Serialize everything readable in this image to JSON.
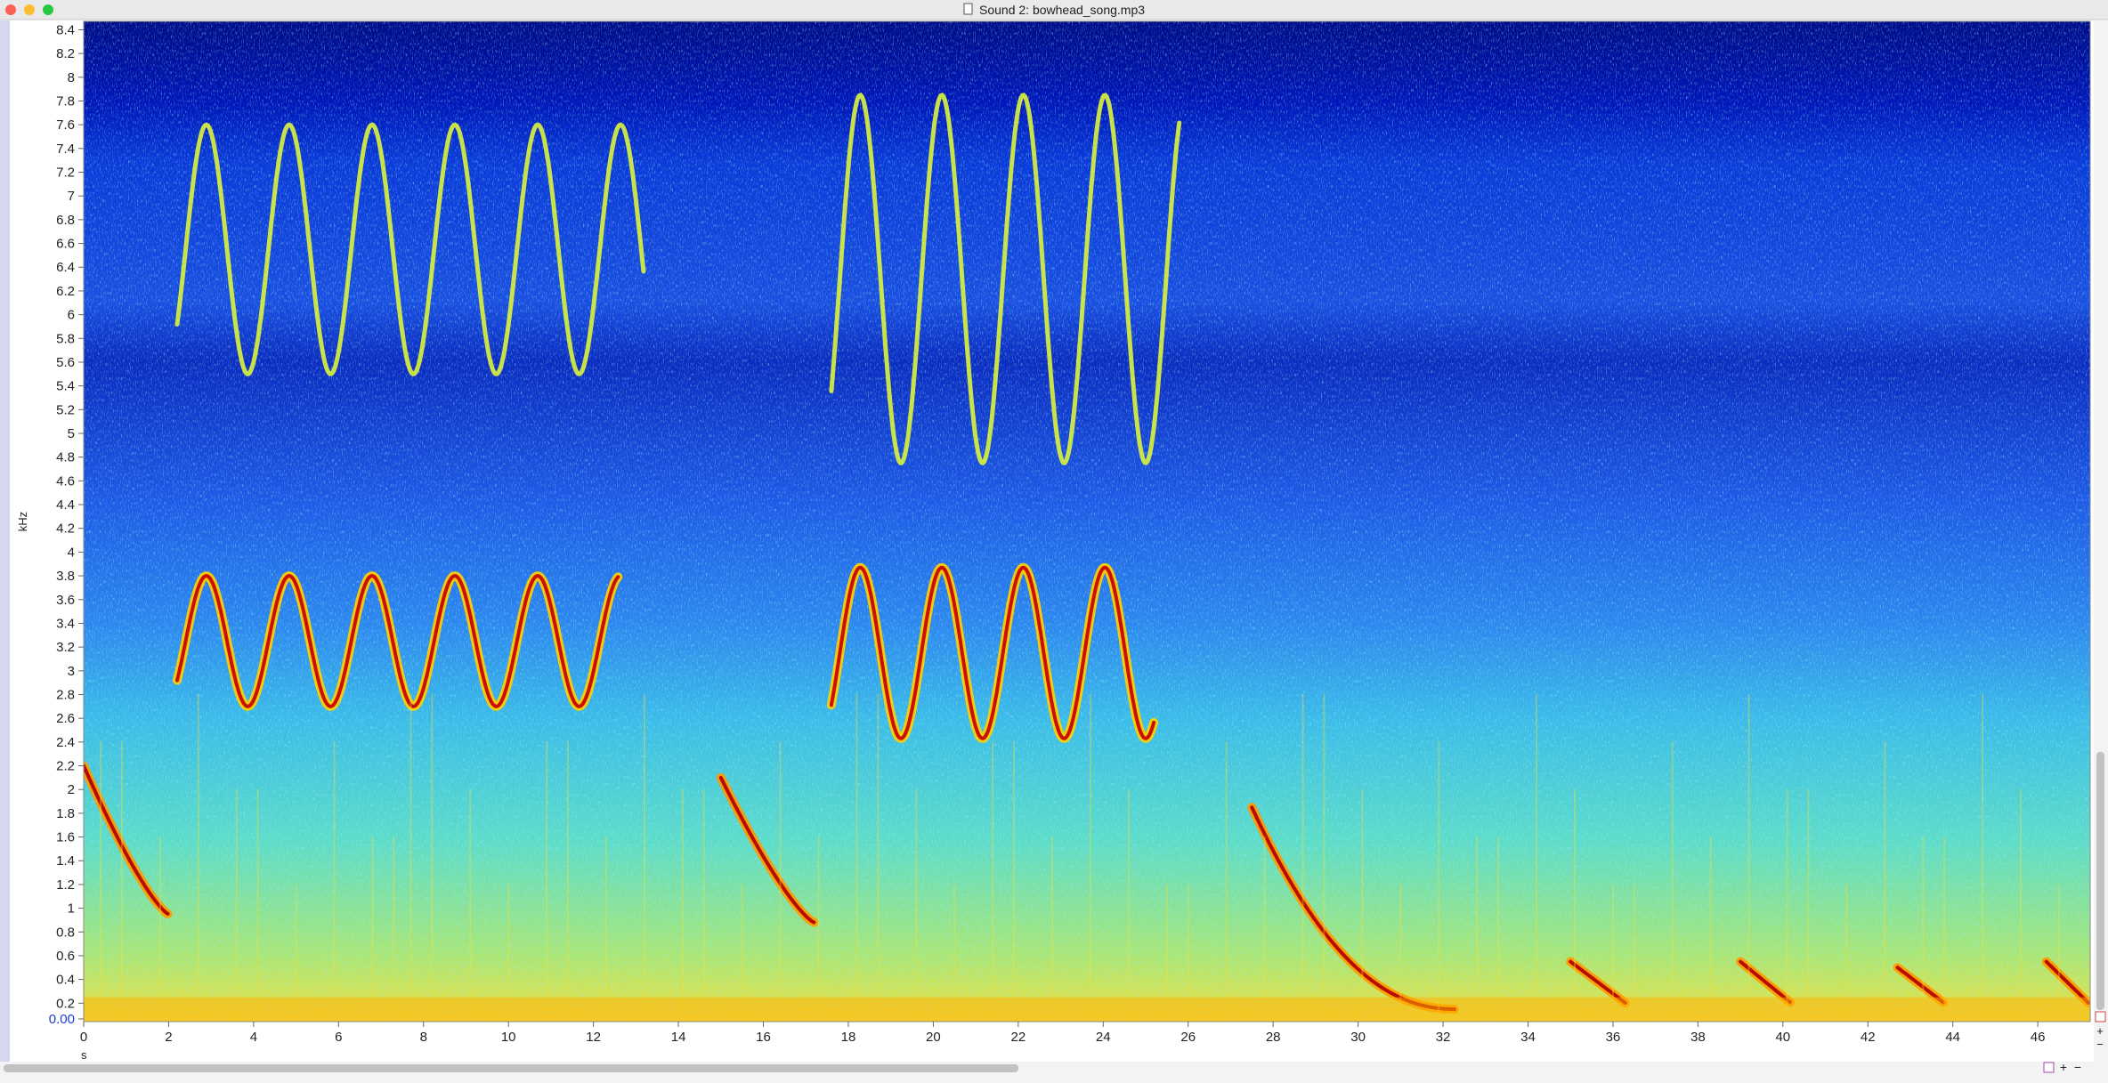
{
  "window": {
    "title": "Sound 2: bowhead_song.mp3"
  },
  "spectrogram": {
    "y_axis": {
      "label": "kHz",
      "ticks": [
        "0.00",
        "0.2",
        "0.4",
        "0.6",
        "0.8",
        "1",
        "1.2",
        "1.4",
        "1.6",
        "1.8",
        "2",
        "2.2",
        "2.4",
        "2.6",
        "2.8",
        "3",
        "3.2",
        "3.4",
        "3.6",
        "3.8",
        "4",
        "4.2",
        "4.4",
        "4.6",
        "4.8",
        "5",
        "5.2",
        "5.4",
        "5.6",
        "5.8",
        "6",
        "6.2",
        "6.4",
        "6.6",
        "6.8",
        "7",
        "7.2",
        "7.4",
        "7.6",
        "7.8",
        "8",
        "8.2",
        "8.4"
      ]
    },
    "x_axis": {
      "label": "s",
      "ticks": [
        "0",
        "2",
        "4",
        "6",
        "8",
        "10",
        "12",
        "14",
        "16",
        "18",
        "20",
        "22",
        "24",
        "26",
        "28",
        "30",
        "32",
        "34",
        "36",
        "38",
        "40",
        "42",
        "44",
        "46"
      ]
    }
  }
}
